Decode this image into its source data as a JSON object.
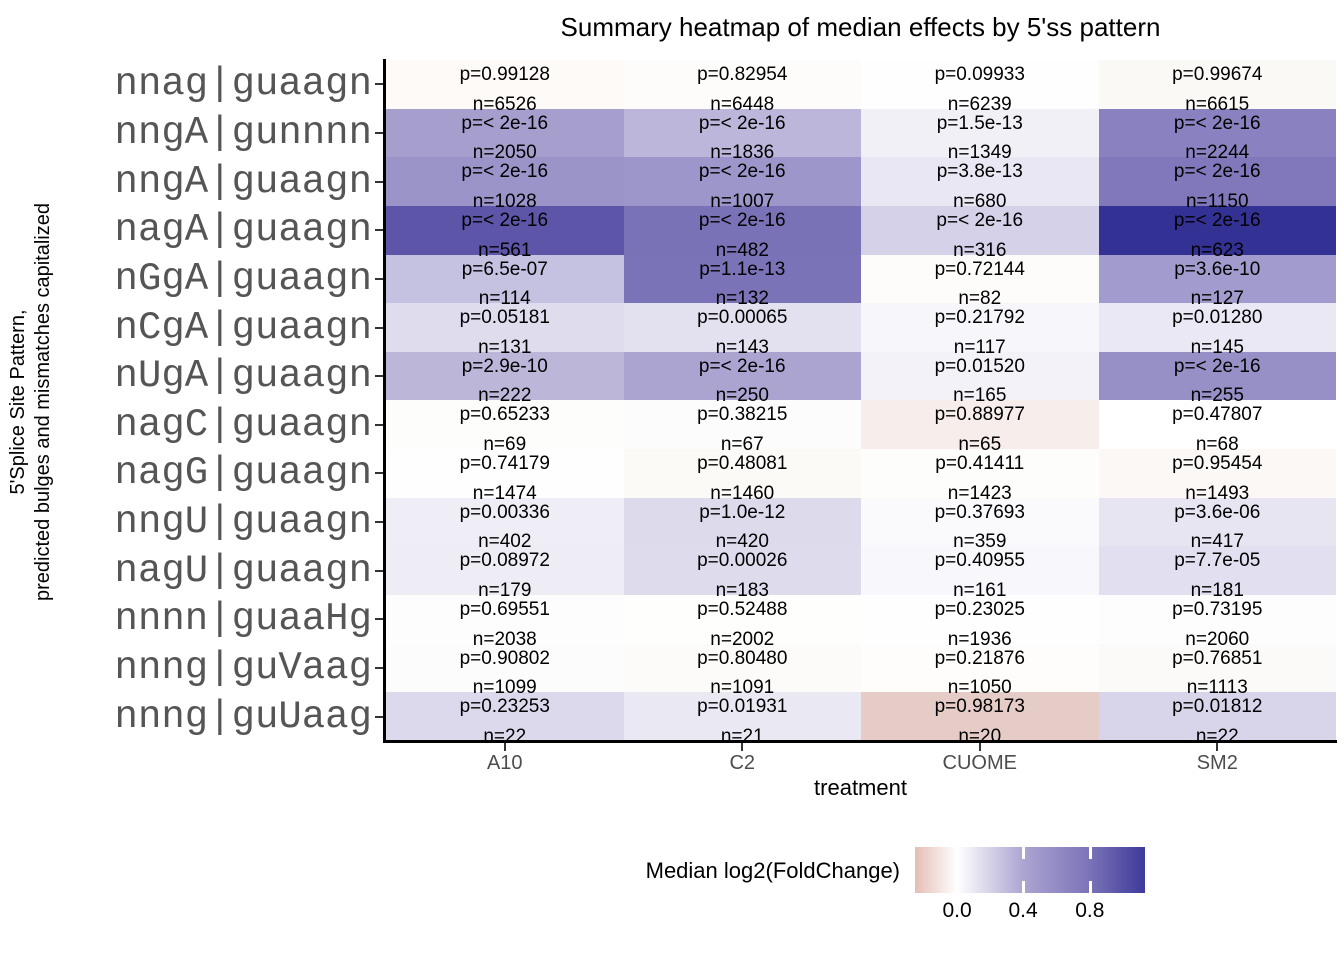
{
  "chart_data": {
    "type": "heatmap",
    "title": "Summary heatmap of median effects by 5'ss pattern",
    "xlabel": "treatment",
    "ylabel_lines": [
      "5'Splice Site Pattern,",
      "predicted bulges and mismatches capitalized"
    ],
    "columns": [
      "A10",
      "C2",
      "CUOME",
      "SM2"
    ],
    "rows": [
      {
        "label": "nnag|guaagn",
        "cells": [
          {
            "p": "p=0.99128",
            "n": "n=6526",
            "color": "#FDFAF8"
          },
          {
            "p": "p=0.82954",
            "n": "n=6448",
            "color": "#FDFCFB"
          },
          {
            "p": "p=0.09933",
            "n": "n=6239",
            "color": "#FEFEFE"
          },
          {
            "p": "p=0.99674",
            "n": "n=6615",
            "color": "#FBF9F6"
          }
        ]
      },
      {
        "label": "nngA|gunnnn",
        "cells": [
          {
            "p": "p=< 2e-16",
            "n": "n=2050",
            "color": "#A69FCE"
          },
          {
            "p": "p=< 2e-16",
            "n": "n=1836",
            "color": "#BCB7DA"
          },
          {
            "p": "p=1.5e-13",
            "n": "n=1349",
            "color": "#F1F0F7"
          },
          {
            "p": "p=< 2e-16",
            "n": "n=2244",
            "color": "#8A82C0"
          }
        ]
      },
      {
        "label": "nngA|guaagn",
        "cells": [
          {
            "p": "p=< 2e-16",
            "n": "n=1028",
            "color": "#9B94C9"
          },
          {
            "p": "p=< 2e-16",
            "n": "n=1007",
            "color": "#9D96CA"
          },
          {
            "p": "p=3.8e-13",
            "n": "n=680",
            "color": "#E9E7F3"
          },
          {
            "p": "p=< 2e-16",
            "n": "n=1150",
            "color": "#8078BA"
          }
        ]
      },
      {
        "label": "nagA|guaagn",
        "cells": [
          {
            "p": "p=< 2e-16",
            "n": "n=561",
            "color": "#5D56A8"
          },
          {
            "p": "p=< 2e-16",
            "n": "n=482",
            "color": "#7A72B6"
          },
          {
            "p": "p=< 2e-16",
            "n": "n=316",
            "color": "#D4D1E8"
          },
          {
            "p": "p=< 2e-16",
            "n": "n=623",
            "color": "#333193"
          }
        ]
      },
      {
        "label": "nGgA|guaagn",
        "cells": [
          {
            "p": "p=6.5e-07",
            "n": "n=114",
            "color": "#C5C1E0"
          },
          {
            "p": "p=1.1e-13",
            "n": "n=132",
            "color": "#7B73B7"
          },
          {
            "p": "p=0.72144",
            "n": "n=82",
            "color": "#FEFCFB"
          },
          {
            "p": "p=3.6e-10",
            "n": "n=127",
            "color": "#A29BCD"
          }
        ]
      },
      {
        "label": "nCgA|guaagn",
        "cells": [
          {
            "p": "p=0.05181",
            "n": "n=131",
            "color": "#DFDCEE"
          },
          {
            "p": "p=0.00065",
            "n": "n=143",
            "color": "#E3E0EF"
          },
          {
            "p": "p=0.21792",
            "n": "n=117",
            "color": "#F7F6FB"
          },
          {
            "p": "p=0.01280",
            "n": "n=145",
            "color": "#EAE8F4"
          }
        ]
      },
      {
        "label": "nUgA|guaagn",
        "cells": [
          {
            "p": "p=2.9e-10",
            "n": "n=222",
            "color": "#BCB6D9"
          },
          {
            "p": "p=< 2e-16",
            "n": "n=250",
            "color": "#ABA4D1"
          },
          {
            "p": "p=0.01520",
            "n": "n=165",
            "color": "#F3F2F9"
          },
          {
            "p": "p=< 2e-16",
            "n": "n=255",
            "color": "#9790C7"
          }
        ]
      },
      {
        "label": "nagC|guaagn",
        "cells": [
          {
            "p": "p=0.65233",
            "n": "n=69",
            "color": "#FDFDFC"
          },
          {
            "p": "p=0.38215",
            "n": "n=67",
            "color": "#FDFCFD"
          },
          {
            "p": "p=0.88977",
            "n": "n=65",
            "color": "#F7EEEB"
          },
          {
            "p": "p=0.47807",
            "n": "n=68",
            "color": "#FFFFFF"
          }
        ]
      },
      {
        "label": "nagG|guaagn",
        "cells": [
          {
            "p": "p=0.74179",
            "n": "n=1474",
            "color": "#FEFEFE"
          },
          {
            "p": "p=0.48081",
            "n": "n=1460",
            "color": "#FCFAF7"
          },
          {
            "p": "p=0.41411",
            "n": "n=1423",
            "color": "#FDFDFC"
          },
          {
            "p": "p=0.95454",
            "n": "n=1493",
            "color": "#FBF8F5"
          }
        ]
      },
      {
        "label": "nngU|guaagn",
        "cells": [
          {
            "p": "p=0.00336",
            "n": "n=402",
            "color": "#EFEDF6"
          },
          {
            "p": "p=1.0e-12",
            "n": "n=420",
            "color": "#DDDAEC"
          },
          {
            "p": "p=0.37693",
            "n": "n=359",
            "color": "#FAF9FC"
          },
          {
            "p": "p=3.6e-06",
            "n": "n=417",
            "color": "#E7E5F2"
          }
        ]
      },
      {
        "label": "nagU|guaagn",
        "cells": [
          {
            "p": "p=0.08972",
            "n": "n=179",
            "color": "#EEECF5"
          },
          {
            "p": "p=0.00026",
            "n": "n=183",
            "color": "#DEDBED"
          },
          {
            "p": "p=0.40955",
            "n": "n=161",
            "color": "#F8F7FB"
          },
          {
            "p": "p=7.7e-05",
            "n": "n=181",
            "color": "#E2DFF0"
          }
        ]
      },
      {
        "label": "nnnn|guaaHg",
        "cells": [
          {
            "p": "p=0.69551",
            "n": "n=2038",
            "color": "#FDFDFD"
          },
          {
            "p": "p=0.52488",
            "n": "n=2002",
            "color": "#FEFEFD"
          },
          {
            "p": "p=0.23025",
            "n": "n=1936",
            "color": "#FEFEFE"
          },
          {
            "p": "p=0.73195",
            "n": "n=2060",
            "color": "#FDFDFD"
          }
        ]
      },
      {
        "label": "nnng|guVaag",
        "cells": [
          {
            "p": "p=0.90802",
            "n": "n=1099",
            "color": "#FCFCFC"
          },
          {
            "p": "p=0.80480",
            "n": "n=1091",
            "color": "#FCFBFA"
          },
          {
            "p": "p=0.21876",
            "n": "n=1050",
            "color": "#FEFDFB"
          },
          {
            "p": "p=0.76851",
            "n": "n=1113",
            "color": "#FBFAF9"
          }
        ]
      },
      {
        "label": "nnng|guUaag",
        "cells": [
          {
            "p": "p=0.23253",
            "n": "n=22",
            "color": "#DCD9ED"
          },
          {
            "p": "p=0.01931",
            "n": "n=21",
            "color": "#EAE8F3"
          },
          {
            "p": "p=0.98173",
            "n": "n=20",
            "color": "#E5CCC7"
          },
          {
            "p": "p=0.01812",
            "n": "n=22",
            "color": "#D8D5EA"
          }
        ]
      }
    ],
    "legend": {
      "title": "Median log2(FoldChange)",
      "ticks": [
        "0.0",
        "0.4",
        "0.8"
      ],
      "tick_positions": [
        0.183,
        0.47,
        0.76
      ],
      "bar_marks": [
        0.47,
        0.76
      ],
      "gradient": [
        {
          "pos": 0.0,
          "color": "#E5BDB5"
        },
        {
          "pos": 0.183,
          "color": "#FFFFFF"
        },
        {
          "pos": 0.47,
          "color": "#ACA5D2"
        },
        {
          "pos": 0.76,
          "color": "#7B73B7"
        },
        {
          "pos": 1.0,
          "color": "#3E3A9B"
        }
      ]
    },
    "layout": {
      "grid": false,
      "legend_position": "bottom"
    }
  }
}
